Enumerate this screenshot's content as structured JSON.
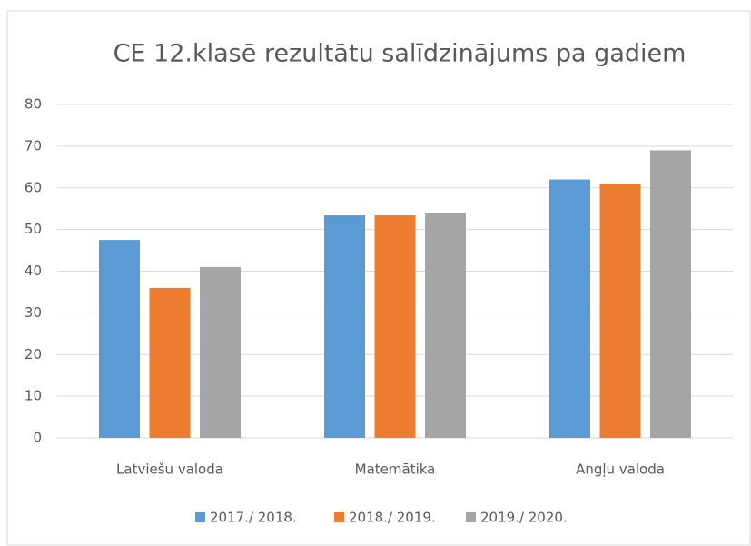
{
  "chart_data": {
    "type": "bar",
    "title": "CE 12.klasē rezultātu salīdzinājums pa gadiem",
    "categories": [
      "Latviešu valoda",
      "Matemātika",
      "Angļu valoda"
    ],
    "series": [
      {
        "name": "2017./ 2018.",
        "color": "#5b9bd5",
        "values": [
          47.5,
          53.4,
          62
        ]
      },
      {
        "name": "2018./ 2019.",
        "color": "#ed7d31",
        "values": [
          36,
          53.4,
          61
        ]
      },
      {
        "name": "2019./ 2020.",
        "color": "#a5a5a5",
        "values": [
          41,
          54,
          69
        ]
      }
    ],
    "ylim": [
      0,
      80
    ],
    "yticks": [
      0,
      10,
      20,
      30,
      40,
      50,
      60,
      70,
      80
    ],
    "grid": true,
    "legend": "bottom"
  }
}
